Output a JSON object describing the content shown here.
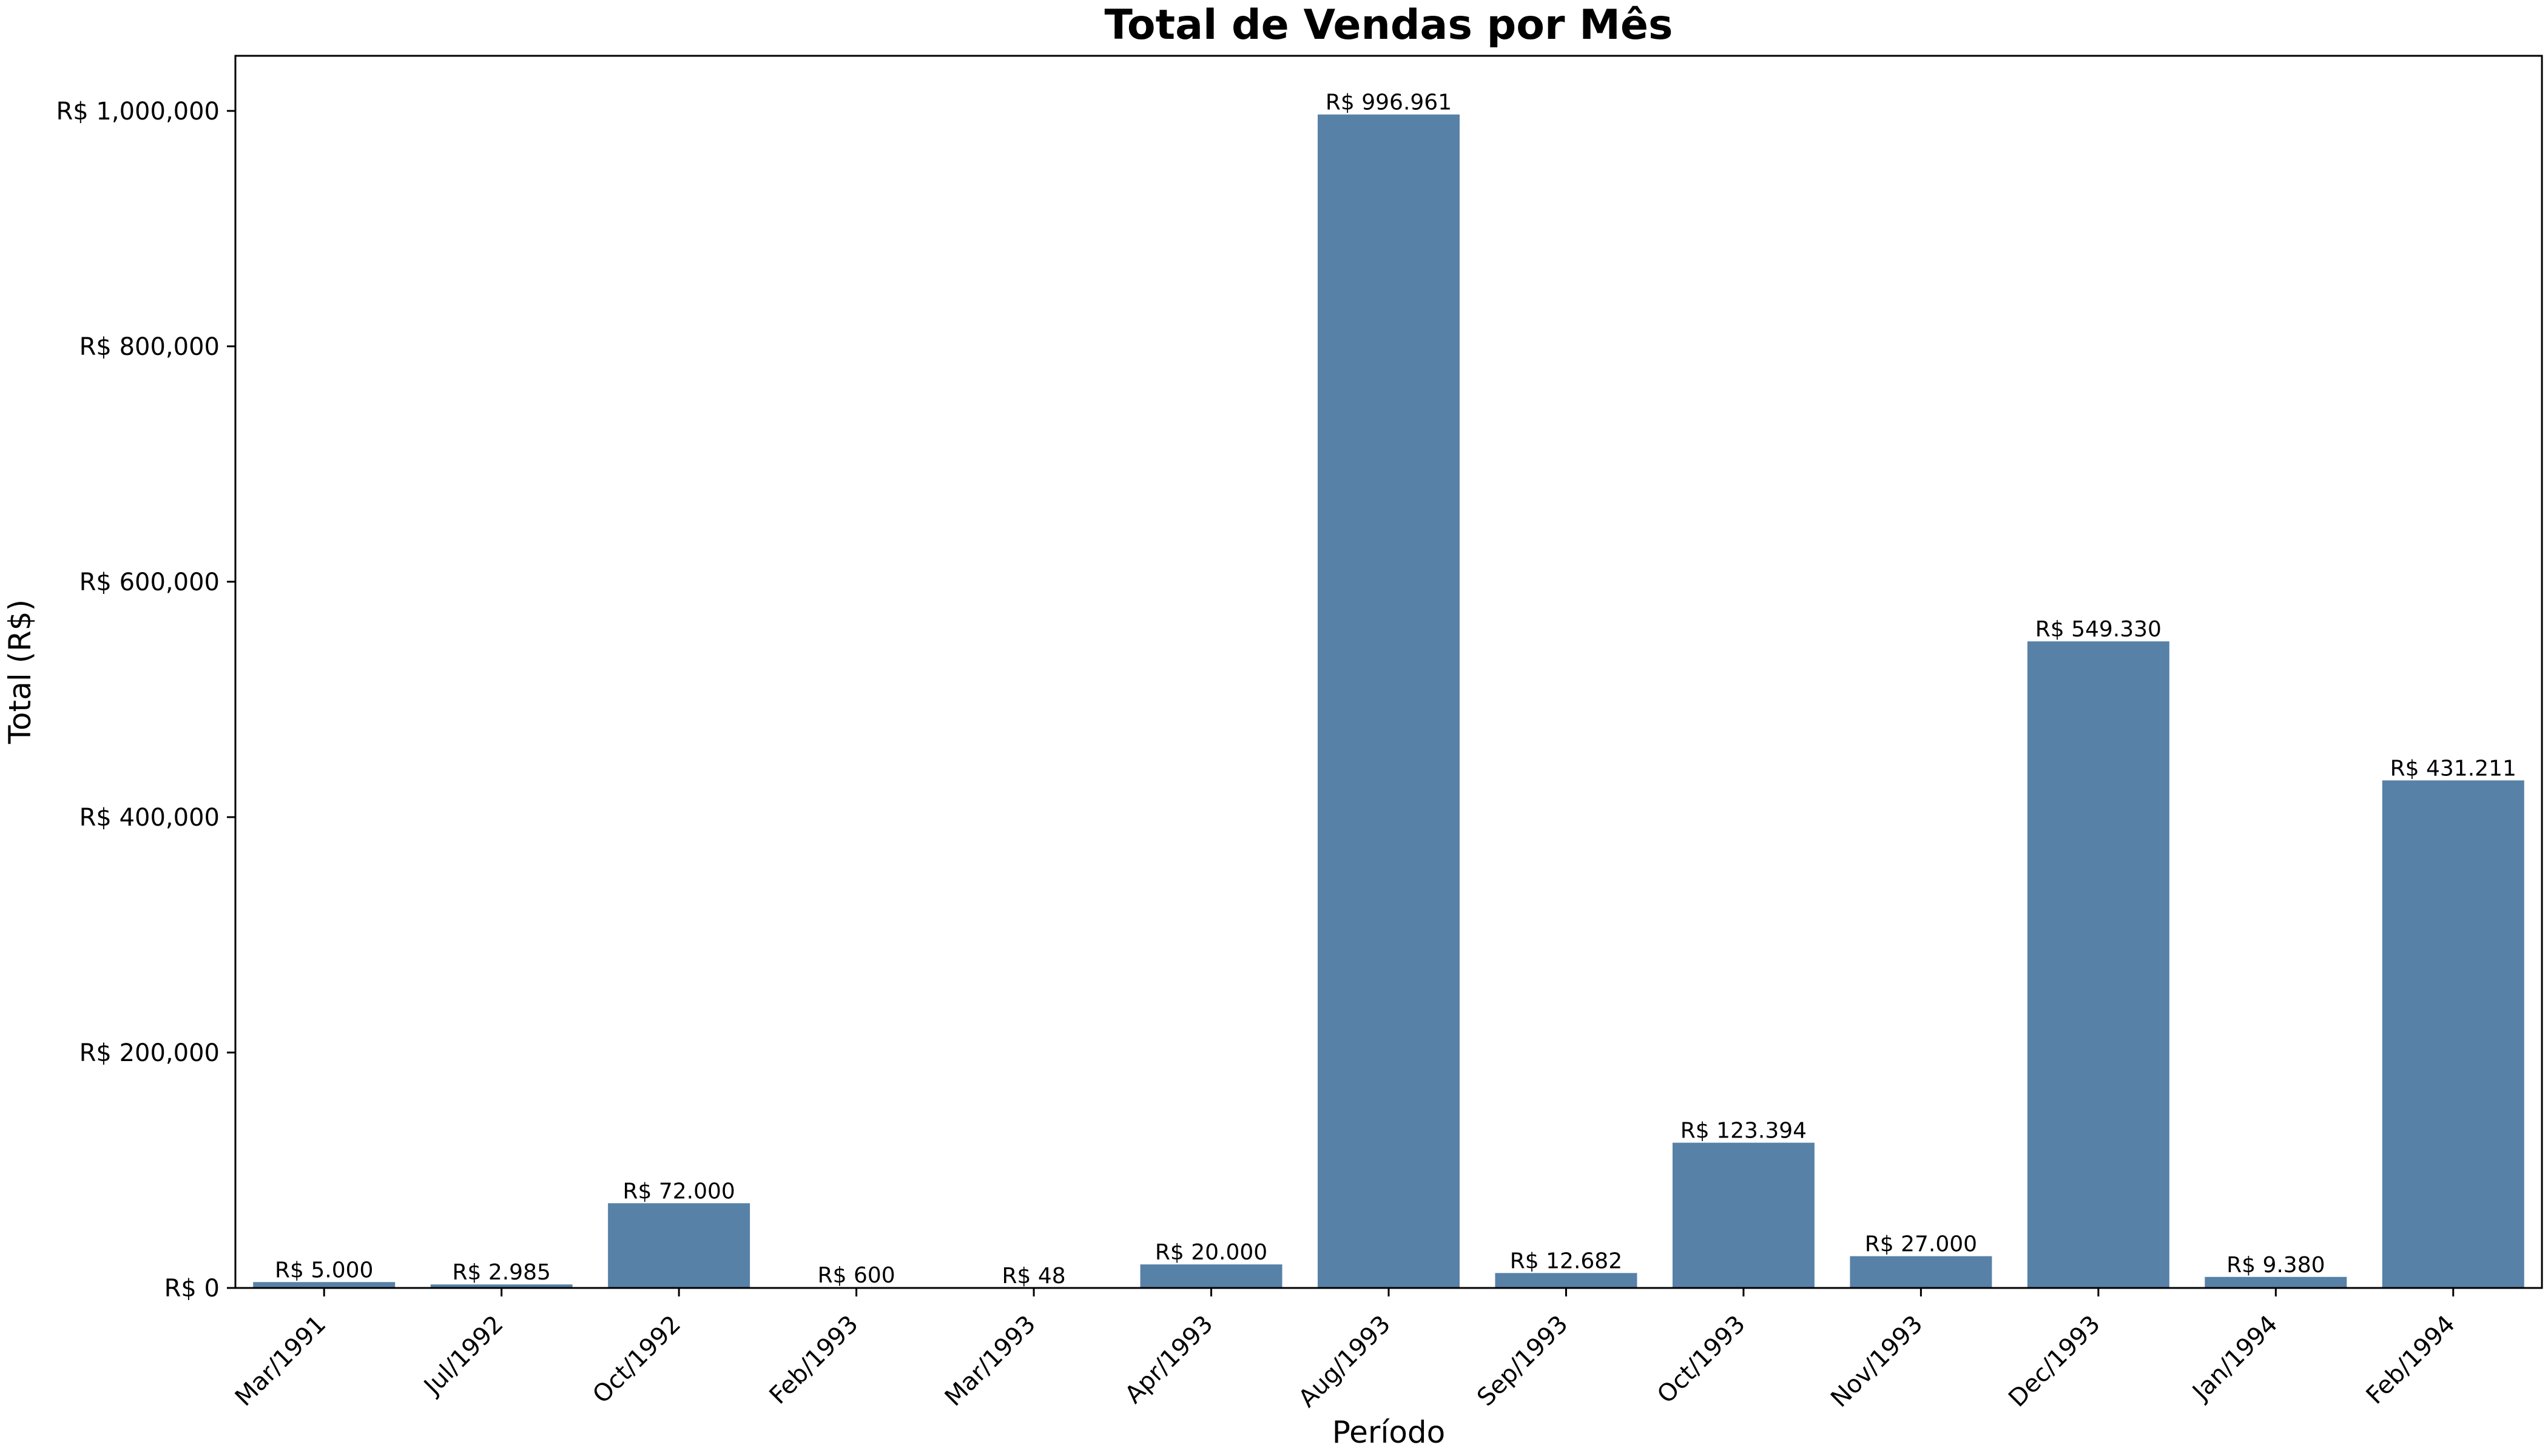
{
  "chart_data": {
    "type": "bar",
    "title": "Total de Vendas por Mês",
    "xlabel": "Período",
    "ylabel": "Total (R$)",
    "categories": [
      "Mar/1991",
      "Jul/1992",
      "Oct/1992",
      "Feb/1993",
      "Mar/1993",
      "Apr/1993",
      "Aug/1993",
      "Sep/1993",
      "Oct/1993",
      "Nov/1993",
      "Dec/1993",
      "Jan/1994",
      "Feb/1994"
    ],
    "values": [
      5000,
      2985,
      72000,
      600,
      48,
      20000,
      996961,
      12682,
      123394,
      27000,
      549330,
      9380,
      431211
    ],
    "data_labels": [
      "R$ 5.000",
      "R$ 2.985",
      "R$ 72.000",
      "R$ 600",
      "R$ 48",
      "R$ 20.000",
      "R$ 996.961",
      "R$ 12.682",
      "R$ 123.394",
      "R$ 27.000",
      "R$ 549.330",
      "R$ 9.380",
      "R$ 431.211"
    ],
    "y_ticks": [
      0,
      200000,
      400000,
      600000,
      800000,
      1000000
    ],
    "y_tick_labels": [
      "R$ 0",
      "R$ 200,000",
      "R$ 400,000",
      "R$ 600,000",
      "R$ 800,000",
      "R$ 1,000,000"
    ],
    "ylim": [
      0,
      1046809
    ],
    "grid": false,
    "bar_color": "#5781a7",
    "x_tick_rotation_deg": 45
  }
}
